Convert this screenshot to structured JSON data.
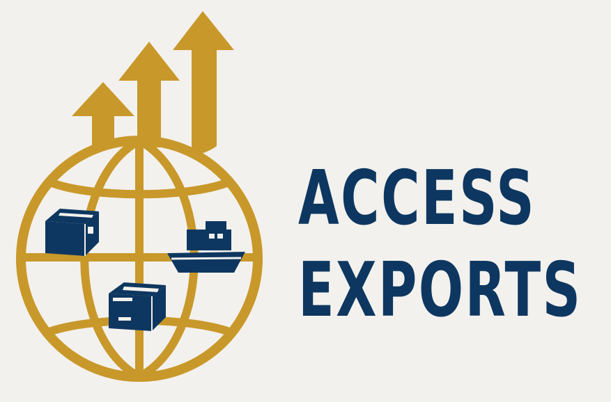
{
  "brand": {
    "line1": "ACCESS",
    "line2": "EXPORTS"
  },
  "colors": {
    "background": "#f3f1ed",
    "gold": "#c8982a",
    "navy": "#0d3760"
  },
  "icons": [
    "growth-arrows-icon",
    "globe-icon",
    "package-box-icon",
    "cargo-ship-icon",
    "shipping-box-icon"
  ]
}
